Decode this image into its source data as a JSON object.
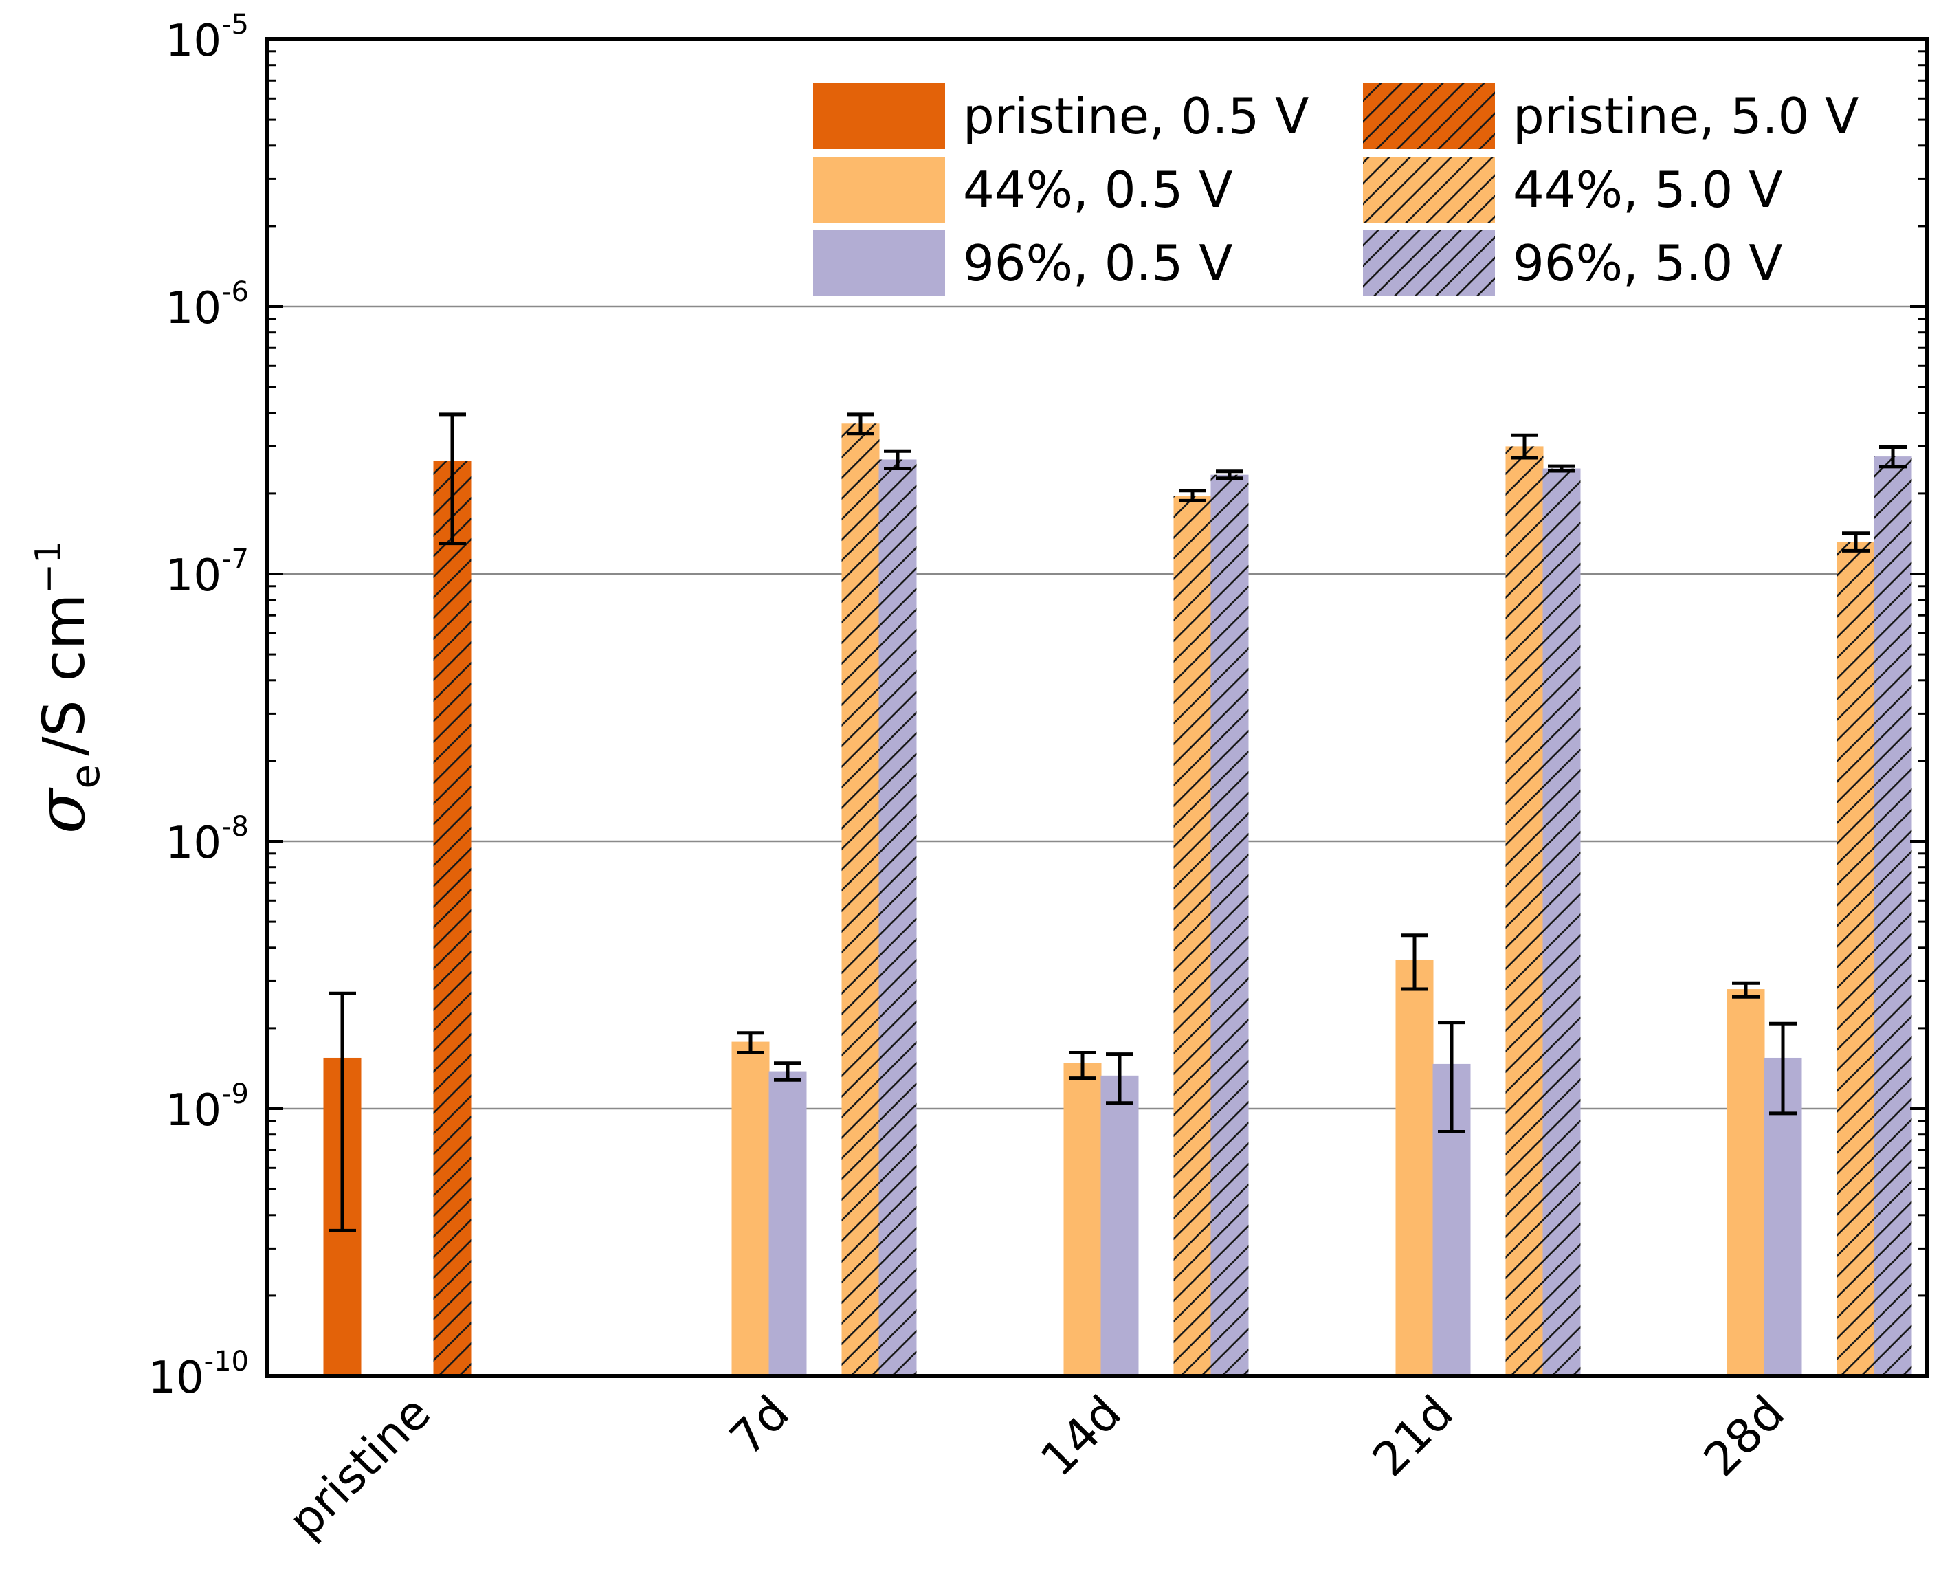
{
  "chart_data": {
    "type": "bar",
    "yscale": "log",
    "ylim": [
      1e-10,
      1e-05
    ],
    "grid": true,
    "ylabel": {
      "symbol": "σ",
      "subscript": "e",
      "unit": "/S cm",
      "unit_exp": "−1"
    },
    "yticks": [
      {
        "value": 1e-10,
        "base": "10",
        "exp": "-10"
      },
      {
        "value": 1e-09,
        "base": "10",
        "exp": "-9"
      },
      {
        "value": 1e-08,
        "base": "10",
        "exp": "-8"
      },
      {
        "value": 1e-07,
        "base": "10",
        "exp": "-7"
      },
      {
        "value": 1e-06,
        "base": "10",
        "exp": "-6"
      },
      {
        "value": 1e-05,
        "base": "10",
        "exp": "-5"
      }
    ],
    "categories": [
      "pristine",
      "7d",
      "14d",
      "21d",
      "28d"
    ],
    "series": [
      {
        "name": "pristine, 0.5 V",
        "color": "#E36209",
        "hatch": false,
        "values": [
          1.55e-09,
          null,
          null,
          null,
          null
        ],
        "err_low": [
          3.5e-10,
          null,
          null,
          null,
          null
        ],
        "err_high": [
          2.7e-09,
          null,
          null,
          null,
          null
        ]
      },
      {
        "name": "pristine, 5.0 V",
        "color": "#E36209",
        "hatch": true,
        "values": [
          2.65e-07,
          null,
          null,
          null,
          null
        ],
        "err_low": [
          1.3e-07,
          null,
          null,
          null,
          null
        ],
        "err_high": [
          3.95e-07,
          null,
          null,
          null,
          null
        ]
      },
      {
        "name": "44%, 0.5 V",
        "color": "#FDBA6B",
        "hatch": false,
        "values": [
          null,
          1.78e-09,
          1.48e-09,
          3.6e-09,
          2.8e-09
        ],
        "err_low": [
          null,
          1.62e-09,
          1.3e-09,
          2.8e-09,
          2.62e-09
        ],
        "err_high": [
          null,
          1.92e-09,
          1.62e-09,
          4.45e-09,
          2.95e-09
        ]
      },
      {
        "name": "96%, 0.5 V",
        "color": "#B2ADD3",
        "hatch": false,
        "values": [
          null,
          1.38e-09,
          1.33e-09,
          1.47e-09,
          1.55e-09
        ],
        "err_low": [
          null,
          1.28e-09,
          1.05e-09,
          8.2e-10,
          9.6e-10
        ],
        "err_high": [
          null,
          1.48e-09,
          1.6e-09,
          2.1e-09,
          2.08e-09
        ]
      },
      {
        "name": "44%, 5.0 V",
        "color": "#FDBA6B",
        "hatch": true,
        "values": [
          null,
          3.65e-07,
          1.96e-07,
          3e-07,
          1.32e-07
        ],
        "err_low": [
          null,
          3.35e-07,
          1.88e-07,
          2.72e-07,
          1.22e-07
        ],
        "err_high": [
          null,
          3.95e-07,
          2.05e-07,
          3.3e-07,
          1.42e-07
        ]
      },
      {
        "name": "96%, 5.0 V",
        "color": "#B2ADD3",
        "hatch": true,
        "values": [
          null,
          2.68e-07,
          2.35e-07,
          2.48e-07,
          2.75e-07
        ],
        "err_low": [
          null,
          2.48e-07,
          2.28e-07,
          2.43e-07,
          2.52e-07
        ],
        "err_high": [
          null,
          2.88e-07,
          2.42e-07,
          2.53e-07,
          2.98e-07
        ]
      }
    ],
    "legend": {
      "position": "top-right",
      "items": [
        "pristine, 0.5 V",
        "pristine, 5.0 V",
        "44%, 0.5 V",
        "44%, 5.0 V",
        "96%, 0.5 V",
        "96%, 5.0 V"
      ]
    }
  }
}
